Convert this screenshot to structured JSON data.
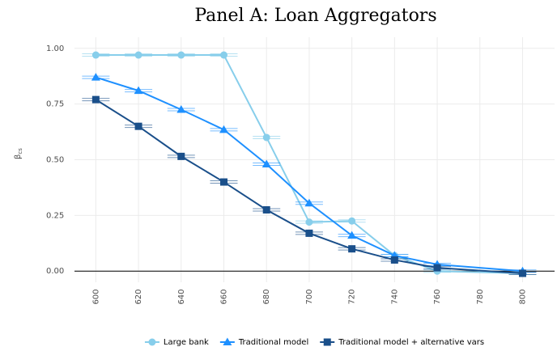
{
  "chart_data": {
    "type": "line",
    "title": "Panel A: Loan Aggregators",
    "y_label": "β",
    "y_label_sub": "cs",
    "x": [
      600,
      620,
      640,
      660,
      680,
      700,
      720,
      740,
      760,
      800
    ],
    "series": [
      {
        "name": "Large bank",
        "color": "#87ceeb",
        "marker": "circle",
        "values": [
          0.97,
          0.97,
          0.97,
          0.97,
          0.6,
          0.22,
          0.225,
          0.07,
          0.0,
          -0.01
        ]
      },
      {
        "name": "Traditional model",
        "color": "#1e90ff",
        "marker": "triangle",
        "values": [
          0.87,
          0.81,
          0.725,
          0.635,
          0.48,
          0.305,
          0.16,
          0.07,
          0.03,
          0.0
        ]
      },
      {
        "name": "Traditional model + alternative vars",
        "color": "#1a4f8a",
        "marker": "square",
        "values": [
          0.77,
          0.65,
          0.515,
          0.4,
          0.275,
          0.17,
          0.1,
          0.05,
          0.015,
          -0.01
        ]
      }
    ],
    "xlim": [
      590,
      815
    ],
    "xticks": [
      600,
      620,
      640,
      660,
      680,
      700,
      720,
      740,
      760,
      780,
      800
    ],
    "ylim": [
      -0.05,
      1.05
    ],
    "yticks": [
      {
        "value": 0,
        "label": "0.00"
      },
      {
        "value": 0.25,
        "label": "0.25"
      },
      {
        "value": 0.5,
        "label": "0.50"
      },
      {
        "value": 0.75,
        "label": "0.75"
      },
      {
        "value": 1,
        "label": "1.00"
      }
    ],
    "grid": true,
    "legend": "bottom"
  }
}
